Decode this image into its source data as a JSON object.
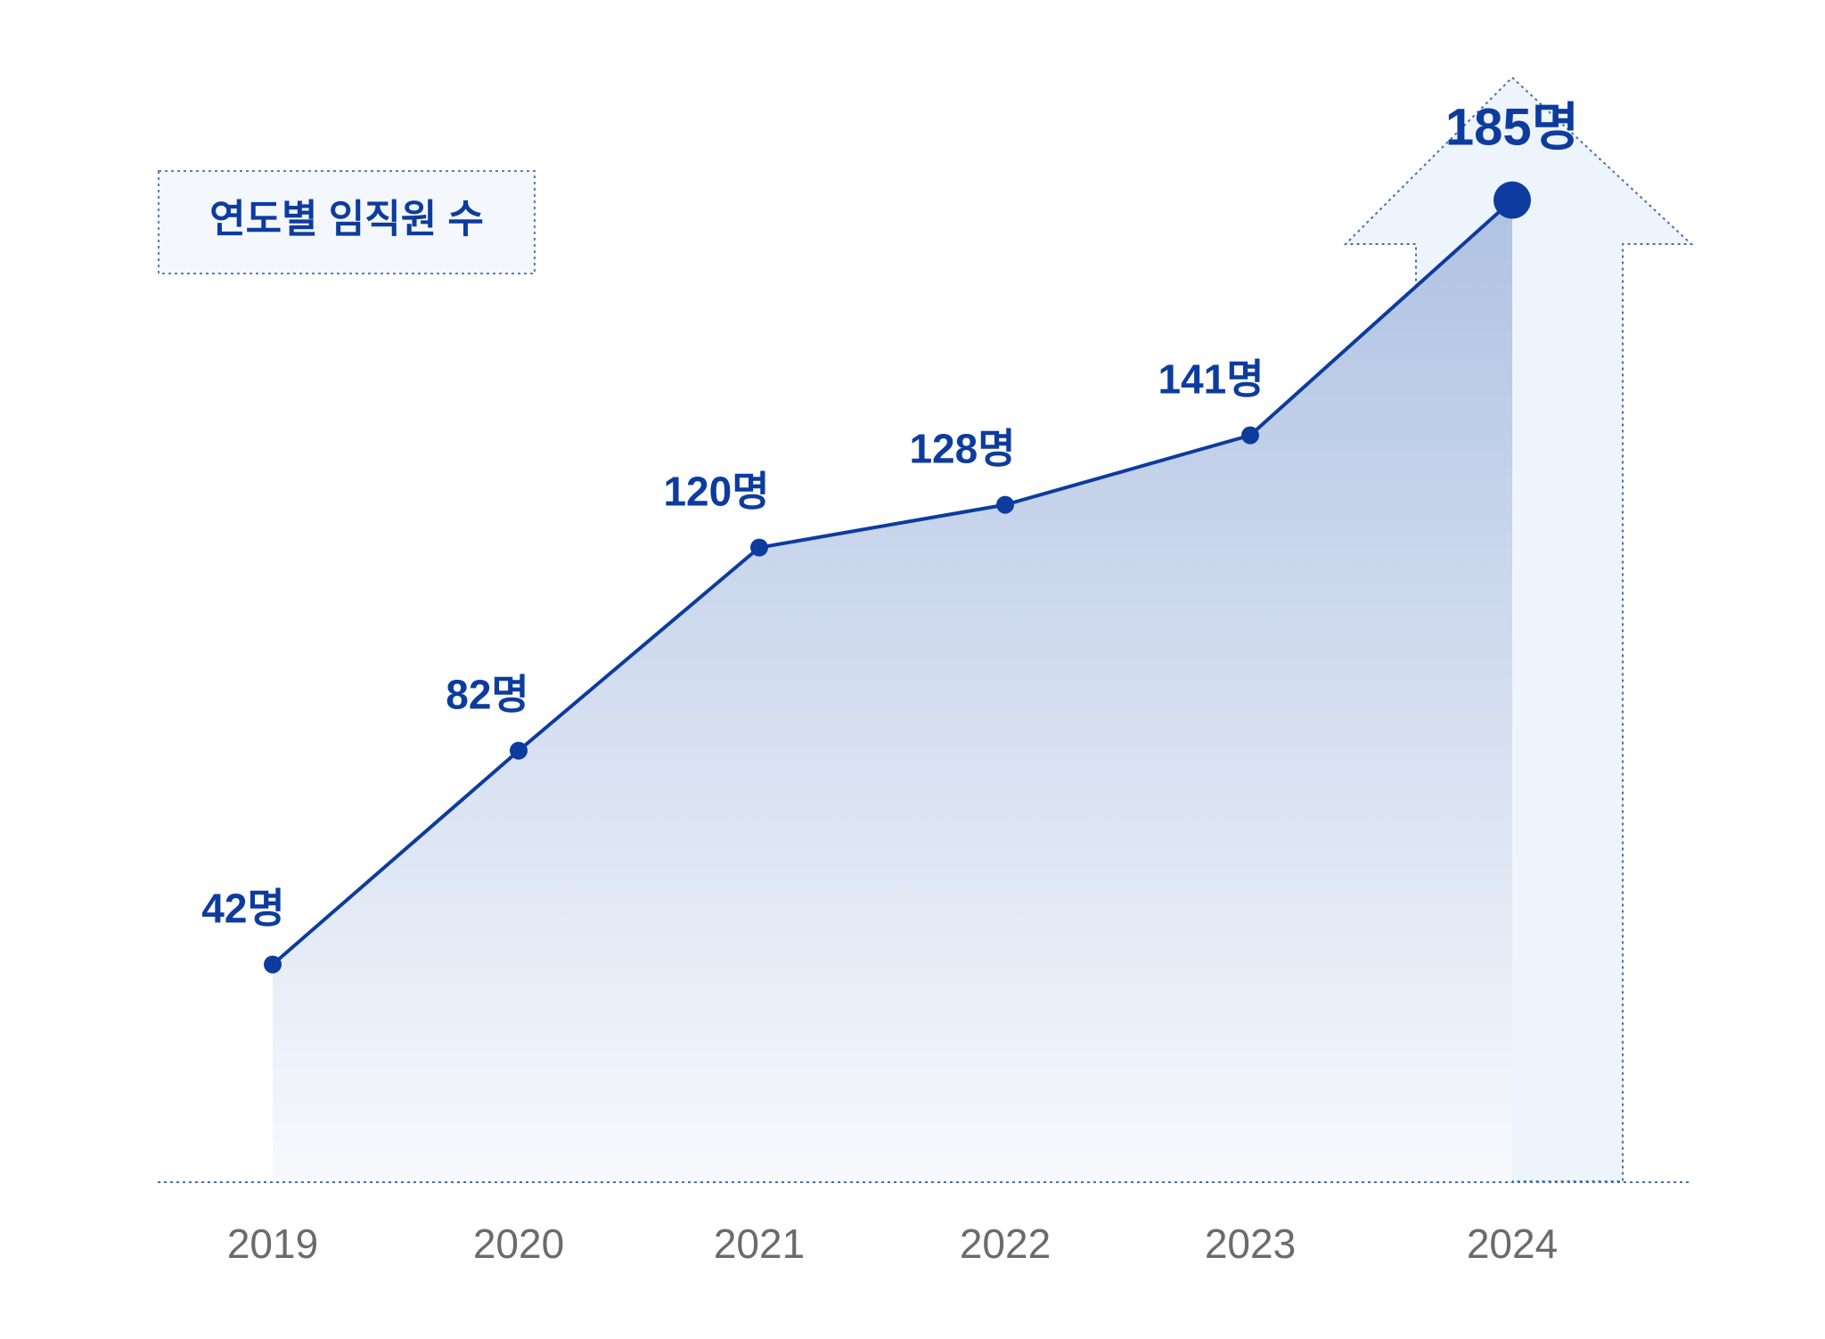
{
  "colors": {
    "accent": "#0D3C9E",
    "label": "#0D3C9E",
    "year_text": "#6B6B6B",
    "title_box_fill": "#F4F8FD",
    "title_box_border": "#5A7FB5",
    "area_top": "#AFC2E2",
    "area_bottom": "#F7F9FD",
    "arrow_fill": "#EEF4FC",
    "arrow_border": "#4A6FA8"
  },
  "chart_data": {
    "type": "area",
    "title": "연도별 임직원 수",
    "xlabel": "",
    "ylabel": "",
    "categories": [
      "2019",
      "2020",
      "2021",
      "2022",
      "2023",
      "2024"
    ],
    "values": [
      42,
      82,
      120,
      128,
      141,
      185
    ],
    "data_labels": [
      "42명",
      "82명",
      "120명",
      "128명",
      "141명",
      "185명"
    ],
    "grid": false,
    "legend": "none",
    "highlight": {
      "category": "2024",
      "shape": "up-arrow"
    }
  }
}
